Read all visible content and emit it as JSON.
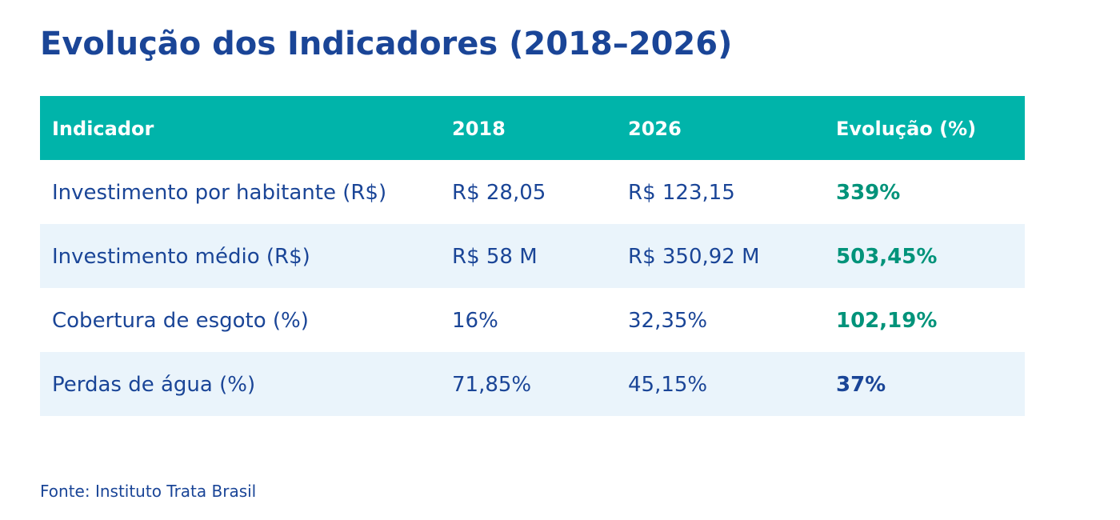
{
  "colors": {
    "title": "#1a4597",
    "header_bg": "#00b4aa",
    "header_text": "#ffffff",
    "body_text": "#1a4597",
    "row_alt_bg": "#eaf4fb",
    "row_bg": "#ffffff",
    "positive": "#00937a",
    "neutral": "#1a4597"
  },
  "chart_data": {
    "type": "table",
    "title": "Evolução dos Indicadores (2018–2026)",
    "columns": [
      "Indicador",
      "2018",
      "2026",
      "Evolução (%)"
    ],
    "rows": [
      {
        "indicator": "Investimento por habitante (R$)",
        "v2018": "R$ 28,05",
        "v2026": "R$ 123,15",
        "evolution": "339%",
        "evolution_color": "positive"
      },
      {
        "indicator": "Investimento médio (R$)",
        "v2018": "R$ 58 M",
        "v2026": "R$ 350,92 M",
        "evolution": "503,45%",
        "evolution_color": "positive"
      },
      {
        "indicator": "Cobertura de esgoto (%)",
        "v2018": "16%",
        "v2026": "32,35%",
        "evolution": "102,19%",
        "evolution_color": "positive"
      },
      {
        "indicator": "Perdas de água (%)",
        "v2018": "71,85%",
        "v2026": "45,15%",
        "evolution": "37%",
        "evolution_color": "neutral"
      }
    ],
    "source": "Fonte: Instituto Trata Brasil"
  }
}
